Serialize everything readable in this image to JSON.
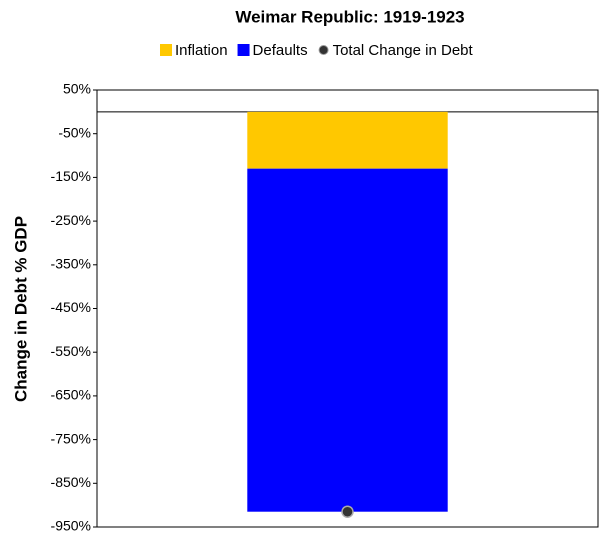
{
  "chart_data": {
    "type": "bar",
    "stacked": true,
    "title": "Weimar Republic: 1919-1923",
    "ylabel": "Change in Debt % GDP",
    "categories": [
      null
    ],
    "series": [
      {
        "name": "Inflation",
        "color": "#ffc800",
        "values": [
          -130
        ]
      },
      {
        "name": "Defaults",
        "color": "#0000ff",
        "values": [
          -785
        ]
      },
      {
        "name": "Total Change in Debt",
        "type": "scatter",
        "color": "#333333",
        "values": [
          -915
        ]
      }
    ],
    "ylim": [
      -950,
      50
    ],
    "yticks": [
      {
        "value": 50,
        "label": "50%"
      },
      {
        "value": -50,
        "label": "-50%"
      },
      {
        "value": -150,
        "label": "-150%"
      },
      {
        "value": -250,
        "label": "-250%"
      },
      {
        "value": -350,
        "label": "-350%"
      },
      {
        "value": -450,
        "label": "-450%"
      },
      {
        "value": -550,
        "label": "-550%"
      },
      {
        "value": -650,
        "label": "-650%"
      },
      {
        "value": -750,
        "label": "-750%"
      },
      {
        "value": -850,
        "label": "-850%"
      },
      {
        "value": -950,
        "label": "-950%"
      }
    ],
    "grid": false
  }
}
